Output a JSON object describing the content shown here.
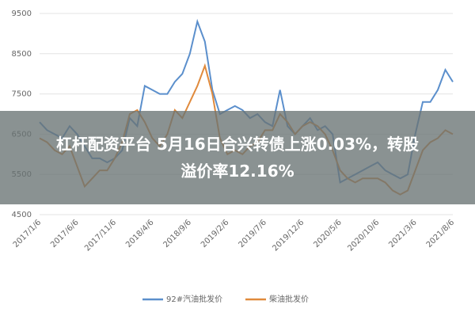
{
  "chart_data": {
    "type": "line",
    "categories": [
      "2017/1/6",
      null,
      null,
      null,
      null,
      "2017/6/6",
      null,
      null,
      null,
      null,
      "2017/11/6",
      null,
      null,
      null,
      null,
      "2018/4/6",
      null,
      null,
      null,
      null,
      "2018/9/6",
      null,
      null,
      null,
      null,
      "2019/2/6",
      null,
      null,
      null,
      null,
      "2019/7/6",
      null,
      null,
      null,
      null,
      "2019/12/6",
      null,
      null,
      null,
      null,
      "2020/5/6",
      null,
      null,
      null,
      null,
      "2020/10/6",
      null,
      null,
      null,
      null,
      "2021/3/6",
      null,
      null,
      null,
      null,
      "2021/8/6"
    ],
    "series": [
      {
        "name": "92#汽油批发价",
        "color": "#5b8fcc",
        "values": [
          6800,
          6600,
          6500,
          6400,
          6700,
          6500,
          6200,
          5900,
          5900,
          5800,
          5900,
          6100,
          6900,
          6700,
          7700,
          7600,
          7500,
          7500,
          7800,
          8000,
          8500,
          9300,
          8800,
          7600,
          7000,
          7100,
          7200,
          7100,
          6900,
          7000,
          6800,
          6700,
          7600,
          6700,
          6500,
          6700,
          6900,
          6600,
          6700,
          6500,
          5300,
          5400,
          5500,
          5600,
          5700,
          5800,
          5600,
          5500,
          5400,
          5500,
          6500,
          7300,
          7300,
          7600,
          8100,
          7800
        ]
      },
      {
        "name": "柴油批发价",
        "color": "#e08a3c",
        "values": [
          6400,
          6300,
          6100,
          6000,
          6200,
          5700,
          5200,
          5400,
          5600,
          5600,
          5900,
          6300,
          7000,
          7100,
          6800,
          6400,
          6200,
          6500,
          7100,
          6900,
          7300,
          7700,
          8200,
          7500,
          6400,
          6000,
          6100,
          6000,
          6200,
          6300,
          6600,
          6600,
          7000,
          6800,
          6500,
          6700,
          6800,
          6700,
          6500,
          6100,
          5600,
          5400,
          5300,
          5400,
          5400,
          5400,
          5300,
          5100,
          5000,
          5100,
          5600,
          6100,
          6300,
          6400,
          6600,
          6500
        ]
      }
    ],
    "ylim": [
      4500,
      9500
    ],
    "yticks": [
      4500,
      5500,
      6500,
      7500,
      8500,
      9500
    ],
    "grid": true,
    "legend": "bottom"
  },
  "banner": {
    "lines": [
      "杠杆配资平台 5月16日合兴转债上涨0.03%，转股",
      "溢价率12.16%"
    ]
  }
}
